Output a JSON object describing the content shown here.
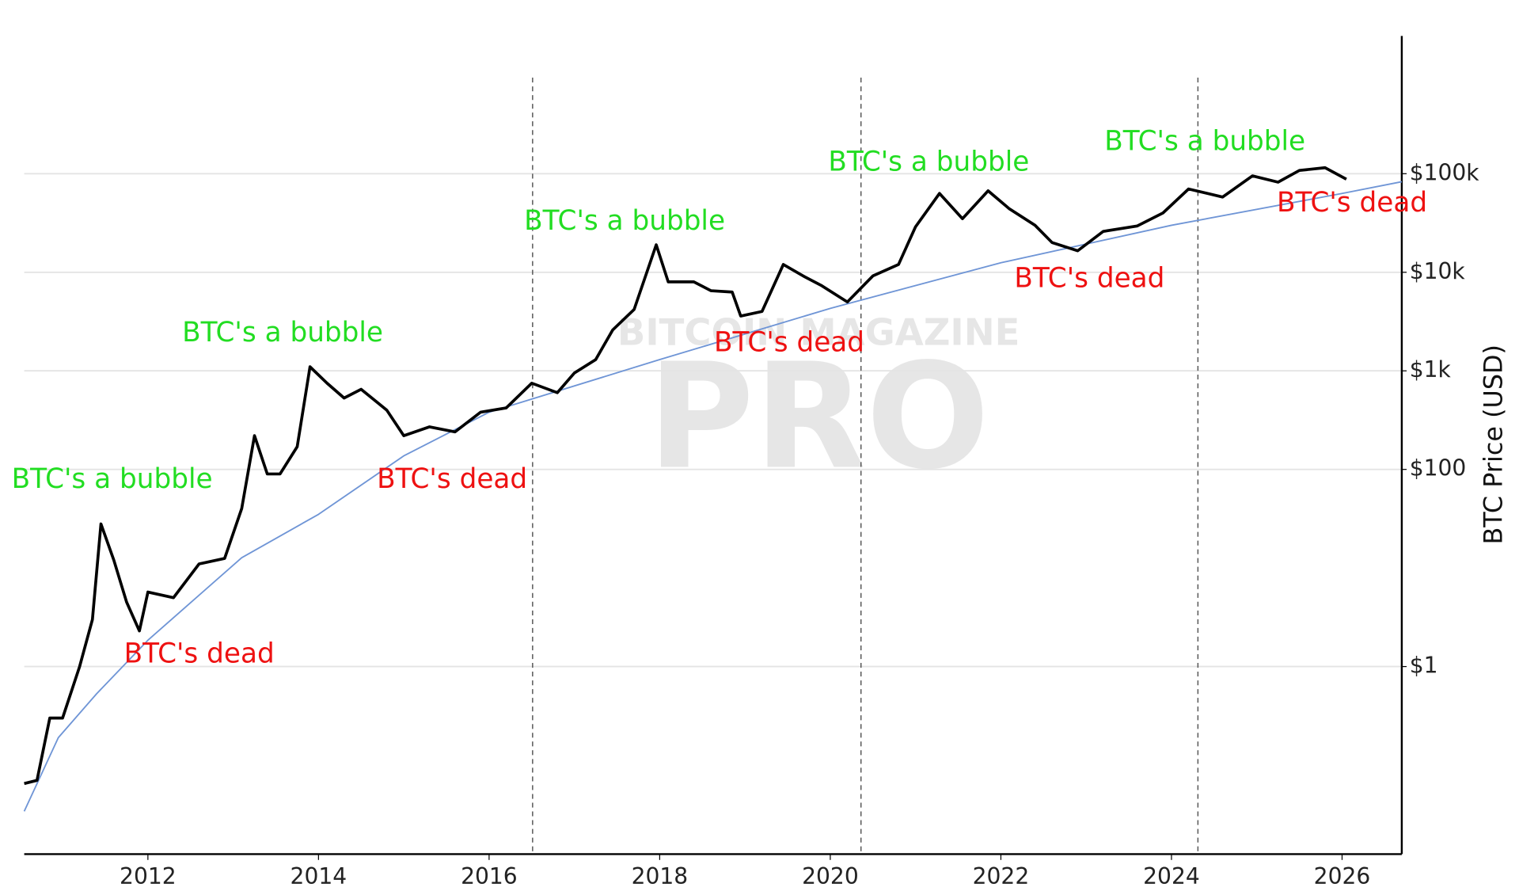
{
  "chart_data": {
    "type": "line",
    "y_label": "BTC Price (USD)",
    "watermark": [
      "BITCOIN MAGAZINE",
      "PRO"
    ],
    "xlim": [
      2010.55,
      2026.7
    ],
    "xticks": [
      2012,
      2014,
      2016,
      2018,
      2020,
      2022,
      2024,
      2026
    ],
    "ylim": [
      0.0125,
      2500000
    ],
    "ylog": true,
    "grid": true,
    "yticks": [
      {
        "value": 1,
        "label": "$1"
      },
      {
        "value": 100,
        "label": "$100"
      },
      {
        "value": 1000,
        "label": "$1k"
      },
      {
        "value": 10000,
        "label": "$10k"
      },
      {
        "value": 100000,
        "label": "$100k"
      }
    ],
    "vlines": [
      2016.51,
      2020.36,
      2024.31
    ],
    "series": [
      {
        "color": "#000000",
        "x": [
          2010.55,
          2010.7,
          2010.85,
          2011.0,
          2011.2,
          2011.35,
          2011.45,
          2011.6,
          2011.75,
          2011.9,
          2012.0,
          2012.3,
          2012.6,
          2012.9,
          2013.1,
          2013.25,
          2013.4,
          2013.55,
          2013.75,
          2013.9,
          2014.1,
          2014.3,
          2014.5,
          2014.8,
          2015.0,
          2015.3,
          2015.6,
          2015.9,
          2016.2,
          2016.5,
          2016.8,
          2017.0,
          2017.25,
          2017.45,
          2017.7,
          2017.96,
          2018.1,
          2018.4,
          2018.6,
          2018.85,
          2018.95,
          2019.2,
          2019.45,
          2019.7,
          2019.9,
          2020.2,
          2020.5,
          2020.8,
          2021.0,
          2021.28,
          2021.55,
          2021.85,
          2022.1,
          2022.4,
          2022.6,
          2022.9,
          2023.2,
          2023.6,
          2023.9,
          2024.2,
          2024.6,
          2024.95,
          2025.25,
          2025.5,
          2025.8,
          2026.05
        ],
        "values": [
          0.065,
          0.07,
          0.3,
          0.3,
          1,
          3,
          28,
          12,
          4.5,
          2.3,
          5.7,
          5,
          11,
          12.5,
          40,
          220,
          90,
          90,
          170,
          1100,
          750,
          530,
          650,
          400,
          220,
          270,
          240,
          380,
          420,
          750,
          600,
          950,
          1300,
          2600,
          4200,
          19000,
          8000,
          8000,
          6500,
          6300,
          3600,
          4000,
          12000,
          9000,
          7300,
          5000,
          9200,
          12000,
          29000,
          63000,
          35000,
          67000,
          44000,
          30000,
          20000,
          16500,
          26000,
          29500,
          40000,
          70000,
          58000,
          95000,
          82000,
          108000,
          115000,
          88000
        ]
      },
      {
        "color": "#6f95d6",
        "x": [
          2010.55,
          2010.95,
          2011.4,
          2012,
          2013.1,
          2014,
          2015,
          2016,
          2018,
          2020,
          2022,
          2024,
          2026,
          2026.7
        ],
        "values": [
          0.034,
          0.19,
          0.53,
          1.85,
          12.7,
          35,
          137,
          380,
          1300,
          4300,
          12500,
          30000,
          63000,
          83000
        ]
      }
    ],
    "annotations": [
      {
        "text": "BTC's a bubble",
        "color": "#22dd22"
      },
      {
        "text": "BTC's a bubble",
        "color": "#22dd22"
      },
      {
        "text": "BTC's a bubble",
        "color": "#22dd22"
      },
      {
        "text": "BTC's a bubble",
        "color": "#22dd22"
      },
      {
        "text": "BTC's a bubble",
        "color": "#22dd22"
      },
      {
        "text": "BTC's dead",
        "color": "#ee1111"
      },
      {
        "text": "BTC's dead",
        "color": "#ee1111"
      },
      {
        "text": "BTC's dead",
        "color": "#ee1111"
      },
      {
        "text": "BTC's dead",
        "color": "#ee1111"
      },
      {
        "text": "BTC's dead",
        "color": "#ee1111"
      }
    ]
  }
}
